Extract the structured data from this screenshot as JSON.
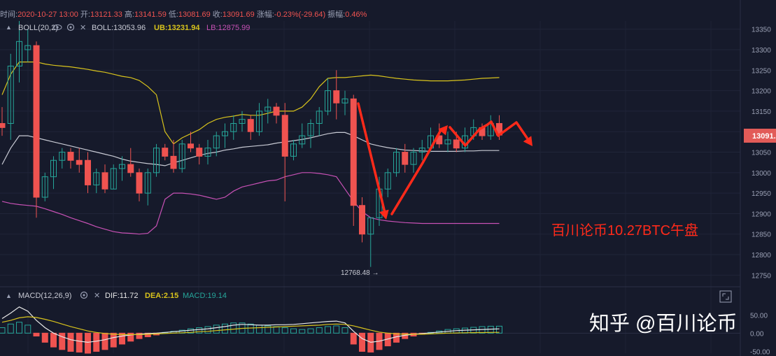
{
  "ohlc_header": {
    "time_label": "时间:",
    "time": "2020-10-27 13:00",
    "open_label": "开:",
    "open": "13121.33",
    "high_label": "高:",
    "high": "13141.59",
    "low_label": "低:",
    "low": "13081.69",
    "close_label": "收:",
    "close": "13091.69",
    "change_label": "涨幅:",
    "change": "-0.23%(-29.64)",
    "amp_label": "振幅:",
    "amp": "0.46%"
  },
  "boll_legend": {
    "name": "BOLL(20,2)",
    "boll": "BOLL:13053.96",
    "ub": "UB:13231.94",
    "lb": "LB:12875.99"
  },
  "macd_legend": {
    "name": "MACD(12,26,9)",
    "dif": "DIF:11.72",
    "dea": "DEA:2.15",
    "macd": "MACD:19.14"
  },
  "price_tag": "13091.",
  "low_marker": "12768.48 →",
  "annotation": "百川论币10.27BTC午盘",
  "watermark": "知乎 @百川论币",
  "colors": {
    "background": "#161a2b",
    "up": "#26a69a",
    "down": "#ef5350",
    "ub": "#d8c31c",
    "lb": "#c751b5",
    "mid": "#c8cad4",
    "dif": "#e8e8e8",
    "dea": "#d8c31c",
    "arrow": "#ff2a1a",
    "annotation": "#ff2a1a"
  },
  "chart_data": [
    {
      "type": "candlestick",
      "title": "BTC",
      "yaxis_ticks": [
        13350,
        13300,
        13250,
        13200,
        13150,
        13100,
        13050,
        13000,
        12950,
        12900,
        12850,
        12800,
        12750
      ],
      "ylim": [
        12725,
        13370
      ],
      "candles": [
        [
          13120,
          13160,
          13090,
          13110
        ],
        [
          13120,
          13290,
          13080,
          13260
        ],
        [
          13260,
          13370,
          13220,
          13320
        ],
        [
          13300,
          13350,
          13270,
          13310
        ],
        [
          13310,
          13320,
          12890,
          12940
        ],
        [
          12940,
          13000,
          12930,
          12990
        ],
        [
          12990,
          13040,
          12960,
          13030
        ],
        [
          13030,
          13060,
          13010,
          13050
        ],
        [
          13050,
          13060,
          13010,
          13030
        ],
        [
          13030,
          13060,
          13000,
          13020
        ],
        [
          13030,
          13050,
          12950,
          12970
        ],
        [
          12970,
          13010,
          12950,
          13000
        ],
        [
          13000,
          13020,
          12950,
          12960
        ],
        [
          12960,
          13020,
          12960,
          13010
        ],
        [
          13010,
          13040,
          12980,
          13020
        ],
        [
          13020,
          13060,
          12990,
          13000
        ],
        [
          13000,
          13010,
          12930,
          12950
        ],
        [
          12950,
          13010,
          12920,
          13000
        ],
        [
          13000,
          13070,
          12990,
          13060
        ],
        [
          13060,
          13070,
          13030,
          13040
        ],
        [
          13040,
          13080,
          13000,
          13010
        ],
        [
          13010,
          13080,
          13000,
          13070
        ],
        [
          13070,
          13100,
          13050,
          13060
        ],
        [
          13060,
          13070,
          13020,
          13040
        ],
        [
          13040,
          13080,
          13020,
          13060
        ],
        [
          13060,
          13100,
          13040,
          13090
        ],
        [
          13090,
          13120,
          13060,
          13100
        ],
        [
          13100,
          13140,
          13080,
          13120
        ],
        [
          13120,
          13150,
          13100,
          13130
        ],
        [
          13130,
          13140,
          13080,
          13100
        ],
        [
          13100,
          13170,
          13090,
          13150
        ],
        [
          13150,
          13180,
          13120,
          13160
        ],
        [
          13160,
          13170,
          13120,
          13140
        ],
        [
          13140,
          13170,
          12930,
          13040
        ],
        [
          13040,
          13080,
          13030,
          13070
        ],
        [
          13070,
          13120,
          13060,
          13090
        ],
        [
          13090,
          13130,
          13060,
          13120
        ],
        [
          13120,
          13160,
          13090,
          13150
        ],
        [
          13150,
          13230,
          13140,
          13200
        ],
        [
          13200,
          13250,
          13130,
          13170
        ],
        [
          13170,
          13200,
          13140,
          13180
        ],
        [
          13180,
          13190,
          12870,
          12920
        ],
        [
          12920,
          12940,
          12830,
          12850
        ],
        [
          12850,
          12890,
          12770,
          12890
        ],
        [
          12890,
          12990,
          12870,
          12960
        ],
        [
          12960,
          13010,
          12940,
          13000
        ],
        [
          13000,
          13060,
          12990,
          13050
        ],
        [
          13050,
          13070,
          13000,
          13020
        ],
        [
          13020,
          13060,
          13000,
          13050
        ],
        [
          13050,
          13080,
          13030,
          13060
        ],
        [
          13060,
          13110,
          13050,
          13090
        ],
        [
          13090,
          13120,
          13060,
          13070
        ],
        [
          13070,
          13100,
          13050,
          13080
        ],
        [
          13080,
          13100,
          13050,
          13060
        ],
        [
          13060,
          13110,
          13050,
          13090
        ],
        [
          13090,
          13130,
          13080,
          13110
        ],
        [
          13110,
          13120,
          13080,
          13090
        ],
        [
          13090,
          13140,
          13080,
          13120
        ],
        [
          13120,
          13140,
          13080,
          13091.69
        ]
      ],
      "boll_ub": [
        13190,
        13240,
        13270,
        13270,
        13270,
        13265,
        13262,
        13260,
        13258,
        13255,
        13252,
        13248,
        13245,
        13240,
        13235,
        13232,
        13225,
        13210,
        13190,
        13100,
        13070,
        13085,
        13095,
        13105,
        13120,
        13130,
        13135,
        13138,
        13142,
        13140,
        13140,
        13145,
        13150,
        13150,
        13150,
        13160,
        13180,
        13210,
        13230,
        13232,
        13232,
        13234,
        13236,
        13238,
        13236,
        13233,
        13230,
        13228,
        13226,
        13225,
        13224,
        13224,
        13224,
        13225,
        13226,
        13228,
        13230,
        13231,
        13231.94
      ],
      "boll_mid": [
        13020,
        13060,
        13090,
        13090,
        13085,
        13080,
        13075,
        13070,
        13065,
        13060,
        13055,
        13050,
        13045,
        13040,
        13033,
        13028,
        13025,
        13022,
        13020,
        13017,
        13024,
        13030,
        13036,
        13042,
        13047,
        13050,
        13055,
        13058,
        13062,
        13064,
        13066,
        13068,
        13072,
        13075,
        13078,
        13081,
        13085,
        13090,
        13095,
        13098,
        13098,
        13090,
        13080,
        13070,
        13065,
        13061,
        13058,
        13055,
        13054,
        13053,
        13052,
        13052,
        13052,
        13052,
        13053,
        13053,
        13054,
        13054,
        13053.96
      ],
      "boll_lb": [
        12930,
        12925,
        12922,
        12920,
        12918,
        12912,
        12905,
        12898,
        12890,
        12883,
        12876,
        12868,
        12862,
        12856,
        12853,
        12852,
        12850,
        12852,
        12870,
        12935,
        12950,
        12950,
        12948,
        12945,
        12940,
        12935,
        12940,
        12955,
        12965,
        12970,
        12975,
        12980,
        12982,
        12990,
        12995,
        13000,
        13000,
        12998,
        12995,
        12990,
        12960,
        12930,
        12905,
        12890,
        12885,
        12882,
        12880,
        12878,
        12877,
        12876,
        12876,
        12876,
        12876,
        12876,
        12876,
        12876,
        12876,
        12876,
        12875.99
      ]
    },
    {
      "type": "bar",
      "title": "MACD(12,26,9)",
      "yaxis_ticks": [
        50.0,
        0.0,
        -50.0
      ],
      "ylim": [
        -55,
        85
      ],
      "macd": [
        15,
        25,
        30,
        22,
        -8,
        -25,
        -38,
        -45,
        -50,
        -52,
        -55,
        -50,
        -45,
        -38,
        -30,
        -22,
        -15,
        -10,
        -5,
        2,
        5,
        8,
        12,
        15,
        18,
        22,
        25,
        28,
        28,
        25,
        22,
        20,
        18,
        15,
        12,
        10,
        12,
        15,
        18,
        20,
        15,
        -30,
        -50,
        -52,
        -45,
        -35,
        -25,
        -15,
        -8,
        -3,
        2,
        6,
        10,
        12,
        14,
        16,
        18,
        19,
        19.14
      ],
      "dif": [
        40,
        55,
        72,
        60,
        35,
        15,
        0,
        -10,
        -18,
        -22,
        -25,
        -22,
        -18,
        -12,
        -8,
        -5,
        -3,
        -1,
        0,
        2,
        4,
        6,
        8,
        10,
        12,
        15,
        18,
        22,
        24,
        23,
        22,
        22,
        23,
        23,
        24,
        26,
        28,
        30,
        32,
        33,
        28,
        5,
        -15,
        -25,
        -22,
        -16,
        -10,
        -6,
        -3,
        -1,
        1,
        3,
        5,
        7,
        8,
        9,
        10,
        11,
        11.72
      ],
      "dea": [
        30,
        35,
        42,
        45,
        43,
        38,
        32,
        25,
        18,
        12,
        6,
        2,
        -1,
        -3,
        -4,
        -4,
        -4,
        -3,
        -2,
        -1,
        0,
        1,
        2,
        4,
        5,
        7,
        9,
        11,
        13,
        14,
        15,
        16,
        17,
        18,
        19,
        20,
        21,
        22,
        24,
        25,
        24,
        20,
        14,
        8,
        3,
        0,
        -2,
        -3,
        -3,
        -3,
        -2,
        -1,
        0,
        0.5,
        1,
        1.3,
        1.6,
        1.9,
        2.15
      ]
    }
  ]
}
